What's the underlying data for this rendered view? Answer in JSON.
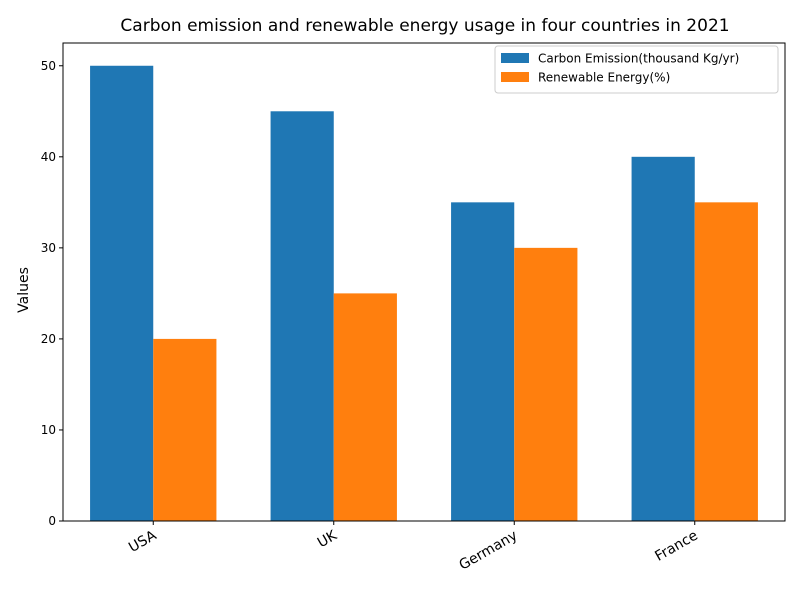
{
  "chart_data": {
    "type": "bar",
    "title": "Carbon emission and renewable energy usage in four countries in 2021",
    "xlabel": "",
    "ylabel": "Values",
    "categories": [
      "USA",
      "UK",
      "Germany",
      "France"
    ],
    "series": [
      {
        "name": "Carbon Emission(thousand Kg/yr)",
        "values": [
          50,
          45,
          35,
          40
        ],
        "color": "#1f77b4"
      },
      {
        "name": "Renewable Energy(%)",
        "values": [
          20,
          25,
          30,
          35
        ],
        "color": "#ff7f0e"
      }
    ],
    "ylim": [
      0,
      52.5
    ],
    "yticks": [
      0,
      10,
      20,
      30,
      40,
      50
    ],
    "grid": false,
    "legend_position": "top-right"
  }
}
